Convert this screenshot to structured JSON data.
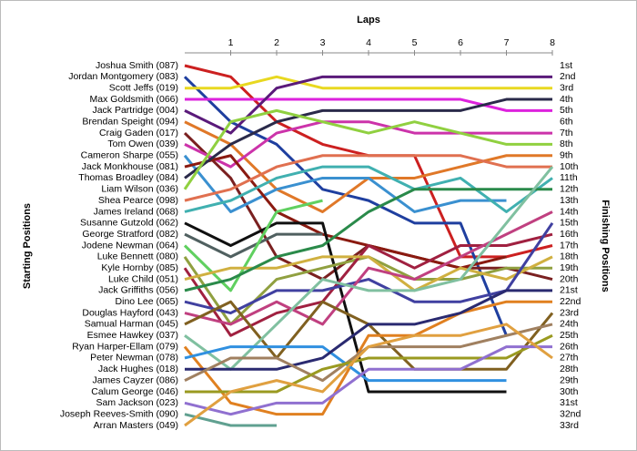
{
  "chart_data": {
    "type": "line",
    "xlabel": "Laps",
    "ylabel": "Starting Positions",
    "y2label": "Finishing Positions",
    "x": [
      0,
      1,
      2,
      3,
      4,
      5,
      6,
      7,
      8
    ],
    "xlim": [
      0,
      8
    ],
    "xticks": [
      1,
      2,
      3,
      4,
      5,
      6,
      7,
      8
    ],
    "ylim": [
      1,
      33
    ],
    "y_inverted": true,
    "yticks": [
      {
        "value": 1,
        "label": "Joshua Smith (087)"
      },
      {
        "value": 2,
        "label": "Jordan Montgomery (083)"
      },
      {
        "value": 3,
        "label": "Scott Jeffs (019)"
      },
      {
        "value": 4,
        "label": "Max Goldsmith (066)"
      },
      {
        "value": 5,
        "label": "Jack Partridge (004)"
      },
      {
        "value": 6,
        "label": "Brendan Speight (094)"
      },
      {
        "value": 7,
        "label": "Craig Gaden (017)"
      },
      {
        "value": 8,
        "label": "Tom Owen (039)"
      },
      {
        "value": 9,
        "label": "Cameron Sharpe (055)"
      },
      {
        "value": 10,
        "label": "Jack Monkhouse (081)"
      },
      {
        "value": 11,
        "label": "Thomas Broadley (084)"
      },
      {
        "value": 12,
        "label": "Liam Wilson (036)"
      },
      {
        "value": 13,
        "label": "Shea Pearce (098)"
      },
      {
        "value": 14,
        "label": "James Ireland (068)"
      },
      {
        "value": 15,
        "label": "Susanne Gutzold (062)"
      },
      {
        "value": 16,
        "label": "George Stratford (082)"
      },
      {
        "value": 17,
        "label": "Jodene Newman (064)"
      },
      {
        "value": 18,
        "label": "Luke Bennett (080)"
      },
      {
        "value": 19,
        "label": "Kyle Hornby (085)"
      },
      {
        "value": 20,
        "label": "Luke Child (051)"
      },
      {
        "value": 21,
        "label": "Jack Griffiths (056)"
      },
      {
        "value": 22,
        "label": "Dino Lee (065)"
      },
      {
        "value": 23,
        "label": "Douglas Hayford (043)"
      },
      {
        "value": 24,
        "label": "Samual Harman (045)"
      },
      {
        "value": 25,
        "label": "Esmee Hawkey (037)"
      },
      {
        "value": 26,
        "label": "Ryan Harper-Ellam (079)"
      },
      {
        "value": 27,
        "label": "Peter Newman (078)"
      },
      {
        "value": 28,
        "label": "Jack Hughes (018)"
      },
      {
        "value": 29,
        "label": "James Cayzer (086)"
      },
      {
        "value": 30,
        "label": "Calum George (046)"
      },
      {
        "value": 31,
        "label": "Sam Jackson (023)"
      },
      {
        "value": 32,
        "label": "Joseph Reeves-Smith (090)"
      },
      {
        "value": 33,
        "label": "Arran Masters (049)"
      }
    ],
    "y2ticks": [
      {
        "value": 1,
        "label": "1st"
      },
      {
        "value": 2,
        "label": "2nd"
      },
      {
        "value": 3,
        "label": "3rd"
      },
      {
        "value": 4,
        "label": "4th"
      },
      {
        "value": 5,
        "label": "5th"
      },
      {
        "value": 6,
        "label": "6th"
      },
      {
        "value": 7,
        "label": "7th"
      },
      {
        "value": 8,
        "label": "8th"
      },
      {
        "value": 9,
        "label": "9th"
      },
      {
        "value": 10,
        "label": "10th"
      },
      {
        "value": 11,
        "label": "11th"
      },
      {
        "value": 12,
        "label": "12th"
      },
      {
        "value": 13,
        "label": "13th"
      },
      {
        "value": 14,
        "label": "14th"
      },
      {
        "value": 15,
        "label": "15th"
      },
      {
        "value": 16,
        "label": "16th"
      },
      {
        "value": 17,
        "label": "17th"
      },
      {
        "value": 18,
        "label": "18th"
      },
      {
        "value": 19,
        "label": "19th"
      },
      {
        "value": 20,
        "label": "20th"
      },
      {
        "value": 21,
        "label": "21st"
      },
      {
        "value": 22,
        "label": "22nd"
      },
      {
        "value": 23,
        "label": "23rd"
      },
      {
        "value": 24,
        "label": "24th"
      },
      {
        "value": 25,
        "label": "25th"
      },
      {
        "value": 26,
        "label": "26th"
      },
      {
        "value": 27,
        "label": "27th"
      },
      {
        "value": 28,
        "label": "28th"
      },
      {
        "value": 29,
        "label": "29th"
      },
      {
        "value": 30,
        "label": "30th"
      },
      {
        "value": 31,
        "label": "31st"
      },
      {
        "value": 32,
        "label": "32nd"
      },
      {
        "value": 33,
        "label": "33rd"
      }
    ],
    "series": [
      {
        "color": "#cc2020",
        "values": [
          1,
          2,
          6,
          8,
          9,
          9,
          18,
          18,
          17
        ]
      },
      {
        "color": "#1f3f9f",
        "values": [
          2,
          6,
          8,
          12,
          13,
          15,
          15,
          25,
          null
        ]
      },
      {
        "color": "#e8d820",
        "values": [
          3,
          3,
          2,
          3,
          3,
          3,
          3,
          3,
          3
        ]
      },
      {
        "color": "#dd22dd",
        "values": [
          4,
          4,
          4,
          4,
          4,
          4,
          4,
          5,
          5
        ]
      },
      {
        "color": "#5a1a7a",
        "values": [
          5,
          7,
          3,
          2,
          2,
          2,
          2,
          2,
          2
        ]
      },
      {
        "color": "#e07828",
        "values": [
          6,
          8,
          12,
          14,
          11,
          11,
          10,
          9,
          9
        ]
      },
      {
        "color": "#7a2020",
        "values": [
          7,
          11,
          18,
          20,
          17,
          18,
          19,
          19,
          20
        ]
      },
      {
        "color": "#cc33aa",
        "values": [
          8,
          10,
          7,
          6,
          6,
          7,
          7,
          7,
          7
        ]
      },
      {
        "color": "#3a90d0",
        "values": [
          9,
          14,
          12,
          11,
          11,
          14,
          13,
          13,
          null
        ]
      },
      {
        "color": "#8a1a10",
        "values": [
          10,
          9,
          14,
          16,
          17,
          18,
          19,
          18,
          null
        ]
      },
      {
        "color": "#2a2a4a",
        "values": [
          11,
          8,
          6,
          5,
          5,
          5,
          5,
          4,
          4
        ]
      },
      {
        "color": "#90d040",
        "values": [
          12,
          6,
          5,
          6,
          7,
          6,
          7,
          8,
          8
        ]
      },
      {
        "color": "#e07050",
        "values": [
          13,
          12,
          10,
          9,
          9,
          9,
          9,
          10,
          10
        ]
      },
      {
        "color": "#40b0b0",
        "values": [
          14,
          13,
          11,
          10,
          10,
          12,
          11,
          14,
          11
        ]
      },
      {
        "color": "#101010",
        "values": [
          15,
          17,
          15,
          15,
          30,
          30,
          30,
          30,
          null
        ]
      },
      {
        "color": "#506060",
        "values": [
          16,
          18,
          16,
          16,
          null,
          null,
          null,
          null,
          null
        ]
      },
      {
        "color": "#60d060",
        "values": [
          17,
          21,
          14,
          13,
          null,
          null,
          null,
          null,
          null
        ]
      },
      {
        "color": "#90a040",
        "values": [
          18,
          24,
          20,
          19,
          18,
          20,
          20,
          19,
          19
        ]
      },
      {
        "color": "#a02040",
        "values": [
          19,
          25,
          23,
          22,
          17,
          19,
          17,
          17,
          16
        ]
      },
      {
        "color": "#d0b040",
        "values": [
          20,
          19,
          19,
          18,
          18,
          21,
          19,
          20,
          18
        ]
      },
      {
        "color": "#2a8a4a",
        "values": [
          21,
          20,
          18,
          17,
          14,
          12,
          12,
          12,
          12
        ]
      },
      {
        "color": "#4040a0",
        "values": [
          22,
          23,
          21,
          21,
          20,
          22,
          22,
          21,
          15
        ]
      },
      {
        "color": "#c04080",
        "values": [
          23,
          24,
          22,
          24,
          19,
          20,
          18,
          16,
          14
        ]
      },
      {
        "color": "#806020",
        "values": [
          24,
          22,
          27,
          22,
          24,
          28,
          28,
          28,
          23
        ]
      },
      {
        "color": "#80c0a0",
        "values": [
          25,
          28,
          24,
          20,
          21,
          21,
          20,
          15,
          10
        ]
      },
      {
        "color": "#e08020",
        "values": [
          26,
          31,
          32,
          32,
          25,
          25,
          23,
          22,
          22
        ]
      },
      {
        "color": "#3090e0",
        "values": [
          27,
          26,
          26,
          26,
          29,
          29,
          29,
          29,
          null
        ]
      },
      {
        "color": "#2a2a70",
        "values": [
          28,
          28,
          28,
          27,
          24,
          24,
          23,
          21,
          21
        ]
      },
      {
        "color": "#a08060",
        "values": [
          29,
          27,
          27,
          29,
          26,
          26,
          26,
          25,
          24
        ]
      },
      {
        "color": "#9a9a20",
        "values": [
          30,
          30,
          30,
          28,
          27,
          27,
          27,
          27,
          25
        ]
      },
      {
        "color": "#9070d0",
        "values": [
          31,
          32,
          31,
          31,
          28,
          28,
          28,
          26,
          26
        ]
      },
      {
        "color": "#60a090",
        "values": [
          32,
          33,
          33,
          null,
          null,
          null,
          null,
          null,
          null
        ]
      },
      {
        "color": "#e0a040",
        "values": [
          33,
          30,
          29,
          30,
          26,
          25,
          25,
          24,
          27
        ]
      }
    ]
  }
}
